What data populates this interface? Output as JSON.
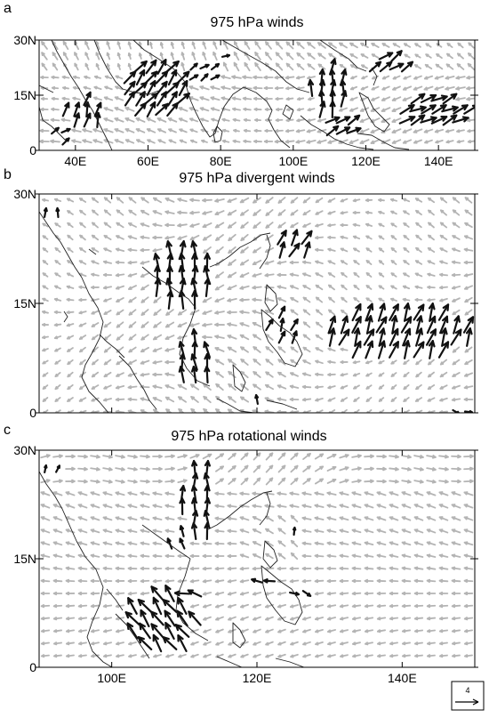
{
  "colors": {
    "grey_vector": "#b4b4b4",
    "black_vector": "#111111"
  },
  "panels": [
    {
      "letter": "a",
      "title": "975 hPa winds",
      "x_ticks": [
        "40E",
        "60E",
        "80E",
        "100E",
        "120E",
        "140E"
      ],
      "y_ticks": [
        "30N",
        "15N",
        "0"
      ],
      "lon_range": [
        30,
        150
      ],
      "lat_range": [
        0,
        30
      ],
      "field": "full"
    },
    {
      "letter": "b",
      "title": "975 hPa divergent winds",
      "x_ticks": [],
      "y_ticks": [
        "30N",
        "15N",
        "0"
      ],
      "lon_range": [
        90,
        150
      ],
      "lat_range": [
        0,
        30
      ],
      "field": "divergent"
    },
    {
      "letter": "c",
      "title": "975 hPa rotational winds",
      "x_ticks": [
        "100E",
        "120E",
        "140E"
      ],
      "y_ticks": [
        "30N",
        "15N",
        "0"
      ],
      "lon_range": [
        90,
        150
      ],
      "lat_range": [
        0,
        30
      ],
      "field": "rotational"
    }
  ],
  "reference_vector": {
    "label": "4"
  }
}
